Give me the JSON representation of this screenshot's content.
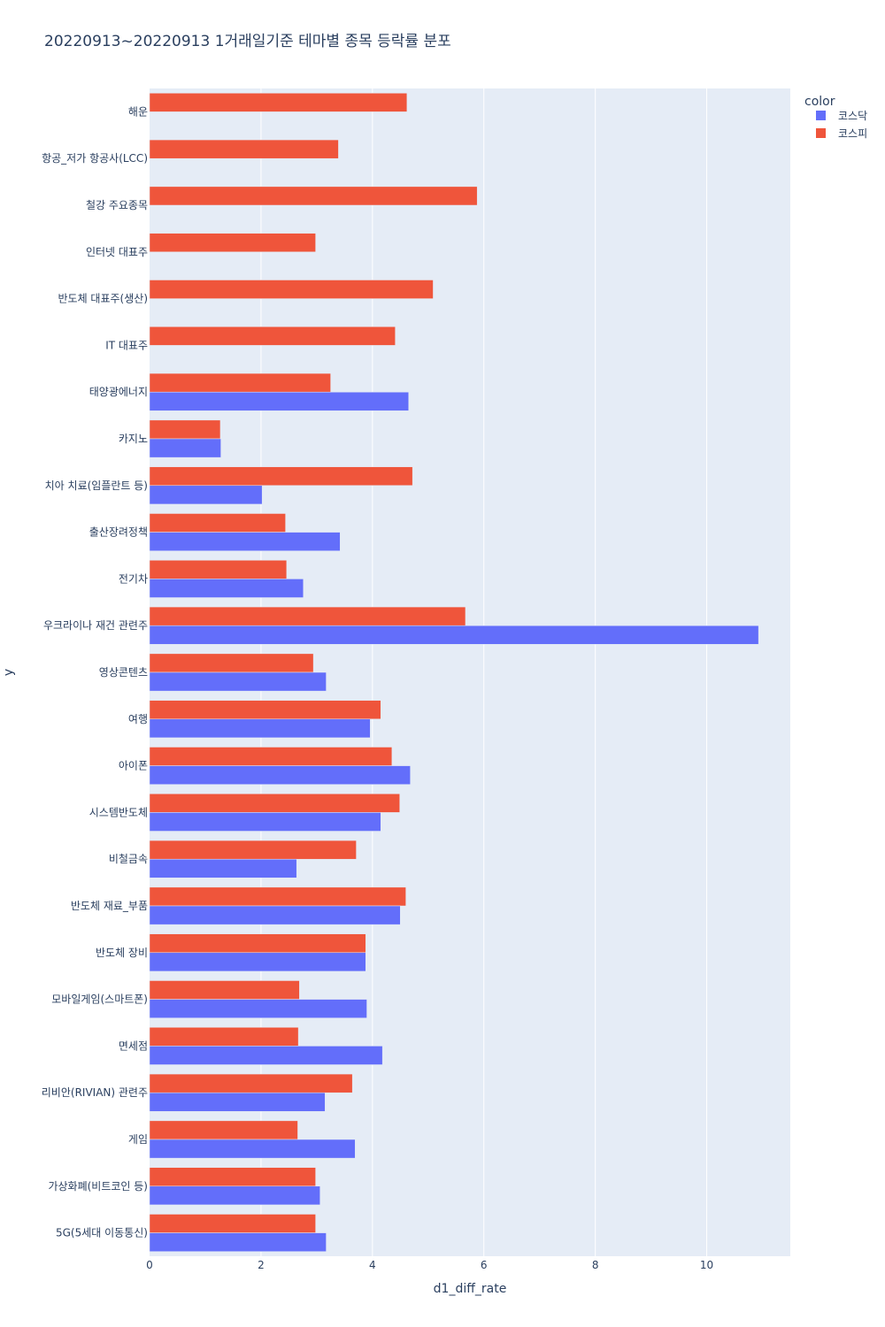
{
  "title": "20220913~20220913 1거래일기준 테마별 종목 등락률 분포",
  "chart_data": {
    "type": "bar",
    "orientation": "horizontal",
    "title": "20220913~20220913 1거래일기준 테마별 종목 등락률 분포",
    "xlabel": "d1_diff_rate",
    "ylabel": "y",
    "xlim": [
      0,
      11.5
    ],
    "xticks": [
      0,
      2,
      4,
      6,
      8,
      10
    ],
    "grid": true,
    "legend": {
      "title": "color",
      "position": "top-right"
    },
    "categories": [
      "해운",
      "항공_저가 항공사(LCC)",
      "철강 주요종목",
      "인터넷 대표주",
      "반도체 대표주(생산)",
      "IT 대표주",
      "태양광에너지",
      "카지노",
      "치아 치료(임플란트 등)",
      "출산장려정책",
      "전기차",
      "우크라이나 재건 관련주",
      "영상콘텐츠",
      "여행",
      "아이폰",
      "시스템반도체",
      "비철금속",
      "반도체 재료_부품",
      "반도체 장비",
      "모바일게임(스마트폰)",
      "면세점",
      "리비안(RIVIAN) 관련주",
      "게임",
      "가상화폐(비트코인 등)",
      "5G(5세대 이동통신)"
    ],
    "series": [
      {
        "name": "코스닥",
        "color": "#636efa",
        "values": [
          null,
          null,
          null,
          null,
          null,
          null,
          4.65,
          1.28,
          2.02,
          3.42,
          2.76,
          10.93,
          3.17,
          3.96,
          4.68,
          4.15,
          2.64,
          4.5,
          3.88,
          3.9,
          4.18,
          3.15,
          3.69,
          3.06,
          3.17
        ]
      },
      {
        "name": "코스피",
        "color": "#ef553b",
        "values": [
          4.62,
          3.39,
          5.88,
          2.98,
          5.09,
          4.41,
          3.25,
          1.27,
          4.72,
          2.44,
          2.46,
          5.67,
          2.94,
          4.15,
          4.35,
          4.49,
          3.71,
          4.6,
          3.88,
          2.69,
          2.67,
          3.64,
          2.66,
          2.98,
          2.98
        ]
      }
    ]
  }
}
